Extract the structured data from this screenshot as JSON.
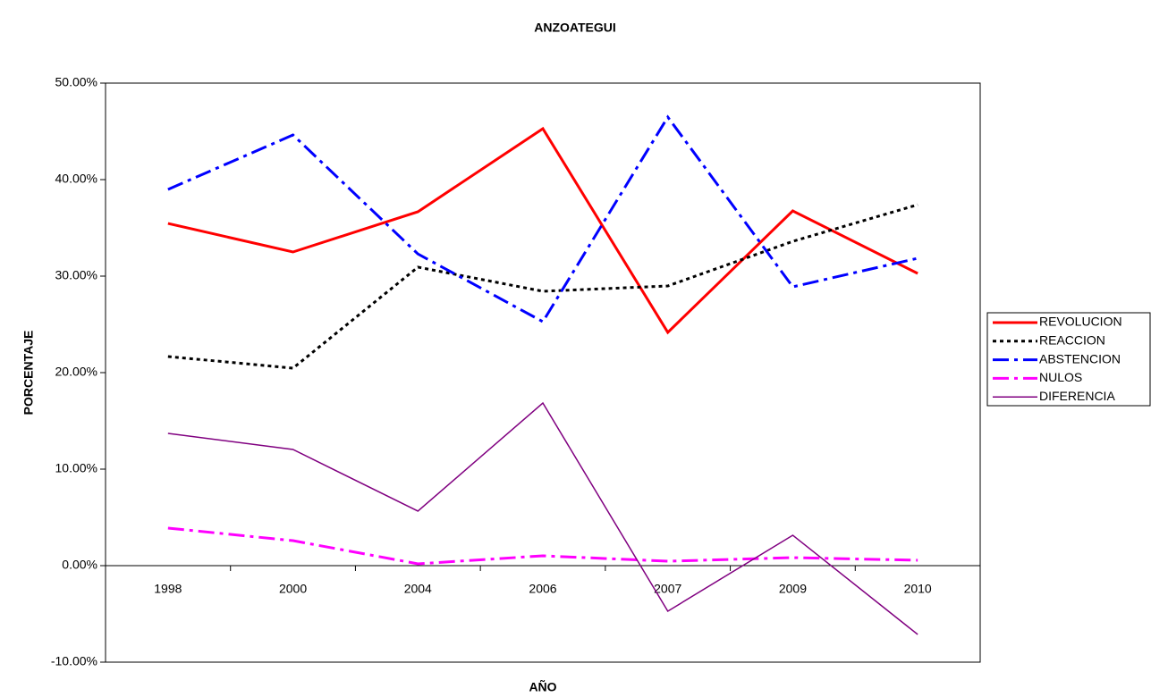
{
  "chart_data": {
    "type": "line",
    "title": "ANZOATEGUI",
    "x_label": "AÑO",
    "y_label": "PORCENTAJE",
    "categories": [
      "1998",
      "2000",
      "2004",
      "2006",
      "2007",
      "2009",
      "2010"
    ],
    "ylim": [
      -10,
      50
    ],
    "yticks": [
      {
        "value": -10,
        "label": "-10.00%"
      },
      {
        "value": 0,
        "label": "0.00%"
      },
      {
        "value": 10,
        "label": "10.00%"
      },
      {
        "value": 20,
        "label": "20.00%"
      },
      {
        "value": 30,
        "label": "30.00%"
      },
      {
        "value": 40,
        "label": "40.00%"
      },
      {
        "value": 50,
        "label": "50.00%"
      }
    ],
    "legend": "right",
    "series": [
      {
        "name": "REVOLUCION",
        "color": "#ff0000",
        "style": "solid",
        "width": 3,
        "values": [
          35.46,
          32.5,
          36.67,
          45.28,
          24.17,
          36.76,
          30.28
        ]
      },
      {
        "name": "REACCION",
        "color": "#000000",
        "style": "dot",
        "width": 3,
        "values": [
          21.67,
          20.46,
          30.93,
          28.43,
          28.98,
          33.6,
          37.4
        ]
      },
      {
        "name": "ABSTENCION",
        "color": "#0000ff",
        "style": "dashdot",
        "width": 3,
        "values": [
          38.98,
          44.63,
          32.3,
          25.28,
          46.48,
          28.89,
          31.85
        ]
      },
      {
        "name": "NULOS",
        "color": "#ff00ff",
        "style": "dashdot",
        "width": 3,
        "values": [
          3.89,
          2.59,
          0.19,
          1.02,
          0.46,
          0.83,
          0.56
        ]
      },
      {
        "name": "DIFERENCIA",
        "color": "#800080",
        "style": "solid",
        "width": 1.5,
        "values": [
          13.7,
          12.04,
          5.65,
          16.85,
          -4.72,
          3.15,
          -7.13
        ]
      }
    ]
  }
}
